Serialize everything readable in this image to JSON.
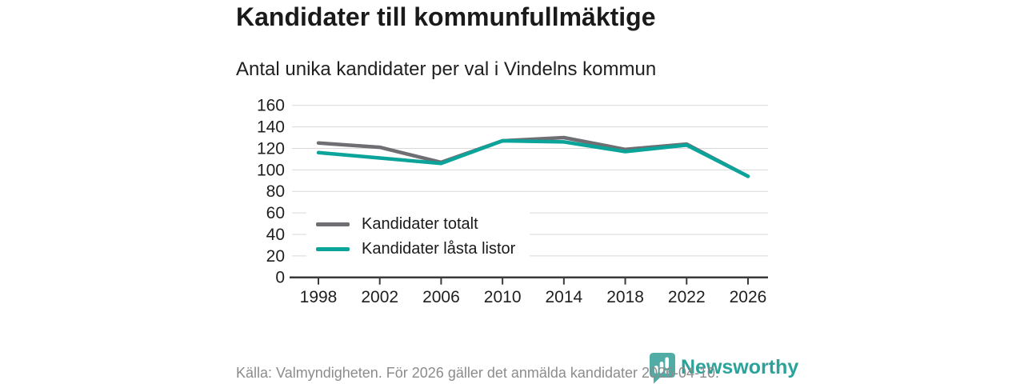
{
  "chart_data": {
    "type": "line",
    "title": "Kandidater till kommunfullmäktige",
    "subtitle": "Antal unika kandidater per val i Vindelns kommun",
    "categories": [
      "1998",
      "2002",
      "2006",
      "2010",
      "2014",
      "2018",
      "2022",
      "2026"
    ],
    "series": [
      {
        "name": "Kandidater totalt",
        "color": "#6e6e73",
        "values": [
          125,
          121,
          107,
          127,
          130,
          119,
          124,
          94
        ]
      },
      {
        "name": "Kandidater låsta listor",
        "color": "#0ba49a",
        "values": [
          116,
          111,
          106,
          127,
          126,
          117,
          123,
          94
        ]
      }
    ],
    "xlabel": "",
    "ylabel": "",
    "ylim": [
      0,
      160
    ],
    "ytick_step": 20,
    "yticks": [
      0,
      20,
      40,
      60,
      80,
      100,
      120,
      140,
      160
    ],
    "grid": true,
    "legend_position": "inside-top-left"
  },
  "footer": {
    "source_text": "Källa: Valmyndigheten. För 2026 gäller det anmälda kandidater 2026-04-10."
  },
  "branding": {
    "logo_text": "Newsworthy",
    "logo_color": "#2ba39a",
    "logo_icon": "speech-bubble-bar-chart-icon"
  }
}
